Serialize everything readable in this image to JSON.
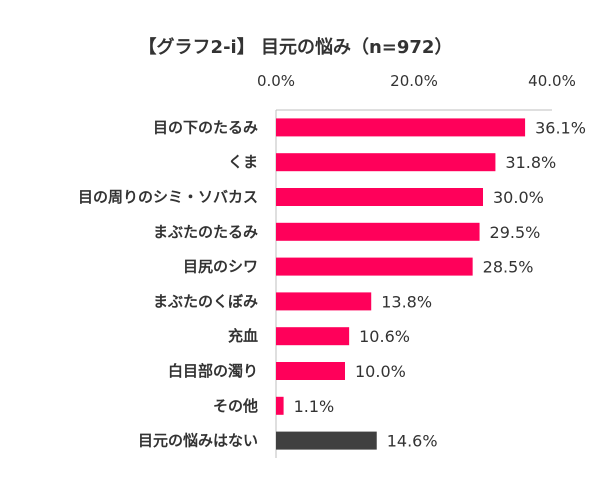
{
  "chart_data": {
    "type": "bar",
    "orientation": "horizontal",
    "title": "【グラフ2-ⅰ】 目元の悩み（n=972）",
    "xlabel": "",
    "ylabel": "",
    "xlim": [
      0,
      40
    ],
    "tick_values": [
      0,
      20,
      40
    ],
    "tick_labels": [
      "0.0%",
      "20.0%",
      "40.0%"
    ],
    "categories": [
      "目の下のたるみ",
      "くま",
      "目の周りのシミ・ソバカス",
      "まぶたのたるみ",
      "目尻のシワ",
      "まぶたのくぼみ",
      "充血",
      "白目部の濁り",
      "その他",
      "目元の悩みはない"
    ],
    "values": [
      36.1,
      31.8,
      30.0,
      29.5,
      28.5,
      13.8,
      10.6,
      10.0,
      1.1,
      14.6
    ],
    "value_labels": [
      "36.1%",
      "31.8%",
      "30.0%",
      "29.5%",
      "28.5%",
      "13.8%",
      "10.6%",
      "10.0%",
      "1.1%",
      "14.6%"
    ],
    "bar_colors": [
      "#ff005a",
      "#ff005a",
      "#ff005a",
      "#ff005a",
      "#ff005a",
      "#ff005a",
      "#ff005a",
      "#ff005a",
      "#ff005a",
      "#404040"
    ],
    "grid": false,
    "legend": "none"
  }
}
